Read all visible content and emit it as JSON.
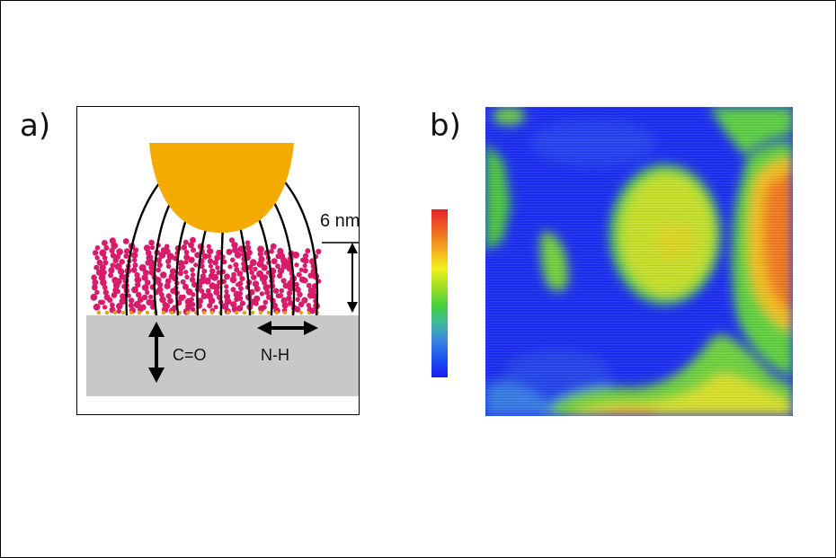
{
  "labels": {
    "panel_a": "a)",
    "panel_b": "b)"
  },
  "diagram": {
    "height_label": "6 nm",
    "vibration_1": "C=O",
    "vibration_2": "N-H"
  },
  "colors": {
    "tip": "#f5aa00",
    "substrate": "#c8c8c8",
    "molecules": "#d81b6a",
    "field_lines": "#000000"
  }
}
